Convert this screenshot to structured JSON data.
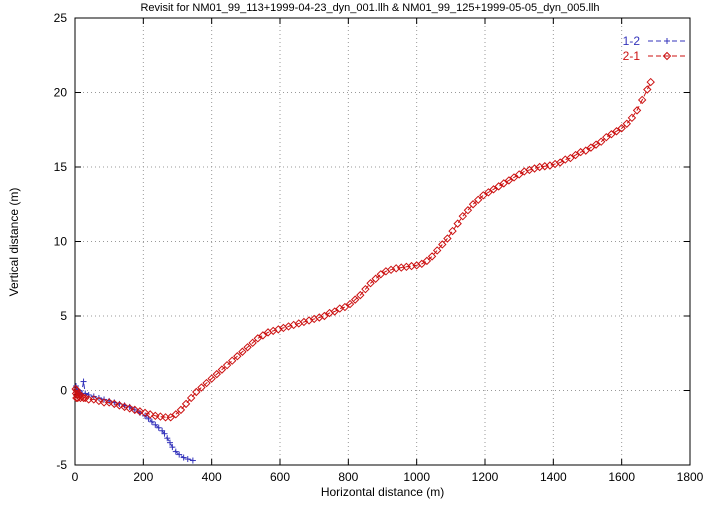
{
  "chart_data": {
    "type": "line",
    "title": "Revisit for NM01_99_113+1999-04-23_dyn_001.llh & NM01_99_125+1999-05-05_dyn_005.llh",
    "xlabel": "Horizontal distance (m)",
    "ylabel": "Vertical distance (m)",
    "xlim": [
      0,
      1800
    ],
    "ylim": [
      -5,
      25
    ],
    "xticks": [
      0,
      200,
      400,
      600,
      800,
      1000,
      1200,
      1400,
      1600,
      1800
    ],
    "yticks": [
      -5,
      0,
      5,
      10,
      15,
      20,
      25
    ],
    "grid": true,
    "legend_position": "top-right",
    "grid_color": "#999999",
    "series": [
      {
        "name": "1-2",
        "color": "#3333bb",
        "marker": "plus",
        "linestyle": "dashed",
        "points": [
          [
            3,
            0.3
          ],
          [
            5,
            0.1
          ],
          [
            8,
            -0.1
          ],
          [
            10,
            0
          ],
          [
            12,
            -0.2
          ],
          [
            15,
            -0.1
          ],
          [
            18,
            -0.3
          ],
          [
            25,
            0.6
          ],
          [
            30,
            -0.2
          ],
          [
            40,
            -0.3
          ],
          [
            55,
            -0.4
          ],
          [
            70,
            -0.5
          ],
          [
            85,
            -0.6
          ],
          [
            100,
            -0.7
          ],
          [
            115,
            -0.8
          ],
          [
            130,
            -0.9
          ],
          [
            145,
            -1.0
          ],
          [
            160,
            -1.1
          ],
          [
            175,
            -1.3
          ],
          [
            190,
            -1.5
          ],
          [
            205,
            -1.7
          ],
          [
            215,
            -1.9
          ],
          [
            225,
            -2.1
          ],
          [
            235,
            -2.3
          ],
          [
            245,
            -2.5
          ],
          [
            255,
            -2.7
          ],
          [
            262,
            -2.9
          ],
          [
            270,
            -3.2
          ],
          [
            278,
            -3.5
          ],
          [
            285,
            -3.8
          ],
          [
            295,
            -4.1
          ],
          [
            305,
            -4.3
          ],
          [
            318,
            -4.5
          ],
          [
            330,
            -4.6
          ],
          [
            345,
            -4.7
          ]
        ]
      },
      {
        "name": "2-1",
        "color": "#cc1111",
        "marker": "diamond",
        "linestyle": "dashed",
        "points": [
          [
            2,
            0.1
          ],
          [
            3,
            -0.2
          ],
          [
            4,
            -0.5
          ],
          [
            5,
            0
          ],
          [
            6,
            -0.3
          ],
          [
            8,
            -0.5
          ],
          [
            10,
            -0.2
          ],
          [
            12,
            -0.4
          ],
          [
            14,
            -0.3
          ],
          [
            16,
            -0.5
          ],
          [
            20,
            -0.4
          ],
          [
            25,
            -0.5
          ],
          [
            30,
            -0.5
          ],
          [
            40,
            -0.6
          ],
          [
            55,
            -0.6
          ],
          [
            70,
            -0.7
          ],
          [
            85,
            -0.8
          ],
          [
            100,
            -0.8
          ],
          [
            115,
            -0.9
          ],
          [
            130,
            -1.0
          ],
          [
            145,
            -1.1
          ],
          [
            160,
            -1.2
          ],
          [
            175,
            -1.3
          ],
          [
            190,
            -1.4
          ],
          [
            205,
            -1.5
          ],
          [
            220,
            -1.6
          ],
          [
            235,
            -1.7
          ],
          [
            250,
            -1.75
          ],
          [
            265,
            -1.8
          ],
          [
            280,
            -1.8
          ],
          [
            295,
            -1.6
          ],
          [
            310,
            -1.3
          ],
          [
            325,
            -0.9
          ],
          [
            340,
            -0.5
          ],
          [
            355,
            -0.1
          ],
          [
            370,
            0.2
          ],
          [
            385,
            0.5
          ],
          [
            400,
            0.8
          ],
          [
            415,
            1.1
          ],
          [
            430,
            1.4
          ],
          [
            445,
            1.7
          ],
          [
            460,
            2.0
          ],
          [
            475,
            2.3
          ],
          [
            490,
            2.6
          ],
          [
            505,
            2.9
          ],
          [
            520,
            3.2
          ],
          [
            535,
            3.5
          ],
          [
            550,
            3.7
          ],
          [
            565,
            3.9
          ],
          [
            580,
            4.0
          ],
          [
            595,
            4.1
          ],
          [
            610,
            4.2
          ],
          [
            625,
            4.3
          ],
          [
            640,
            4.4
          ],
          [
            655,
            4.5
          ],
          [
            670,
            4.6
          ],
          [
            685,
            4.7
          ],
          [
            700,
            4.8
          ],
          [
            715,
            4.9
          ],
          [
            730,
            5.0
          ],
          [
            745,
            5.2
          ],
          [
            760,
            5.3
          ],
          [
            775,
            5.5
          ],
          [
            790,
            5.6
          ],
          [
            805,
            5.8
          ],
          [
            820,
            6.1
          ],
          [
            835,
            6.4
          ],
          [
            850,
            6.8
          ],
          [
            865,
            7.2
          ],
          [
            880,
            7.5
          ],
          [
            895,
            7.8
          ],
          [
            910,
            8.0
          ],
          [
            925,
            8.1
          ],
          [
            940,
            8.2
          ],
          [
            955,
            8.25
          ],
          [
            970,
            8.3
          ],
          [
            985,
            8.35
          ],
          [
            1000,
            8.4
          ],
          [
            1015,
            8.5
          ],
          [
            1030,
            8.7
          ],
          [
            1045,
            9.0
          ],
          [
            1060,
            9.4
          ],
          [
            1075,
            9.8
          ],
          [
            1090,
            10.2
          ],
          [
            1105,
            10.7
          ],
          [
            1120,
            11.2
          ],
          [
            1135,
            11.7
          ],
          [
            1150,
            12.1
          ],
          [
            1165,
            12.5
          ],
          [
            1180,
            12.8
          ],
          [
            1195,
            13.1
          ],
          [
            1210,
            13.3
          ],
          [
            1225,
            13.5
          ],
          [
            1240,
            13.7
          ],
          [
            1255,
            13.9
          ],
          [
            1270,
            14.1
          ],
          [
            1285,
            14.3
          ],
          [
            1300,
            14.5
          ],
          [
            1315,
            14.7
          ],
          [
            1330,
            14.8
          ],
          [
            1345,
            14.9
          ],
          [
            1360,
            15.0
          ],
          [
            1375,
            15.05
          ],
          [
            1390,
            15.1
          ],
          [
            1405,
            15.2
          ],
          [
            1420,
            15.3
          ],
          [
            1435,
            15.5
          ],
          [
            1450,
            15.6
          ],
          [
            1465,
            15.8
          ],
          [
            1480,
            16.0
          ],
          [
            1495,
            16.1
          ],
          [
            1510,
            16.3
          ],
          [
            1525,
            16.5
          ],
          [
            1540,
            16.7
          ],
          [
            1555,
            17.0
          ],
          [
            1570,
            17.2
          ],
          [
            1585,
            17.4
          ],
          [
            1600,
            17.6
          ],
          [
            1615,
            17.9
          ],
          [
            1630,
            18.3
          ],
          [
            1645,
            18.8
          ],
          [
            1660,
            19.5
          ],
          [
            1675,
            20.2
          ],
          [
            1685,
            20.7
          ]
        ]
      }
    ]
  }
}
